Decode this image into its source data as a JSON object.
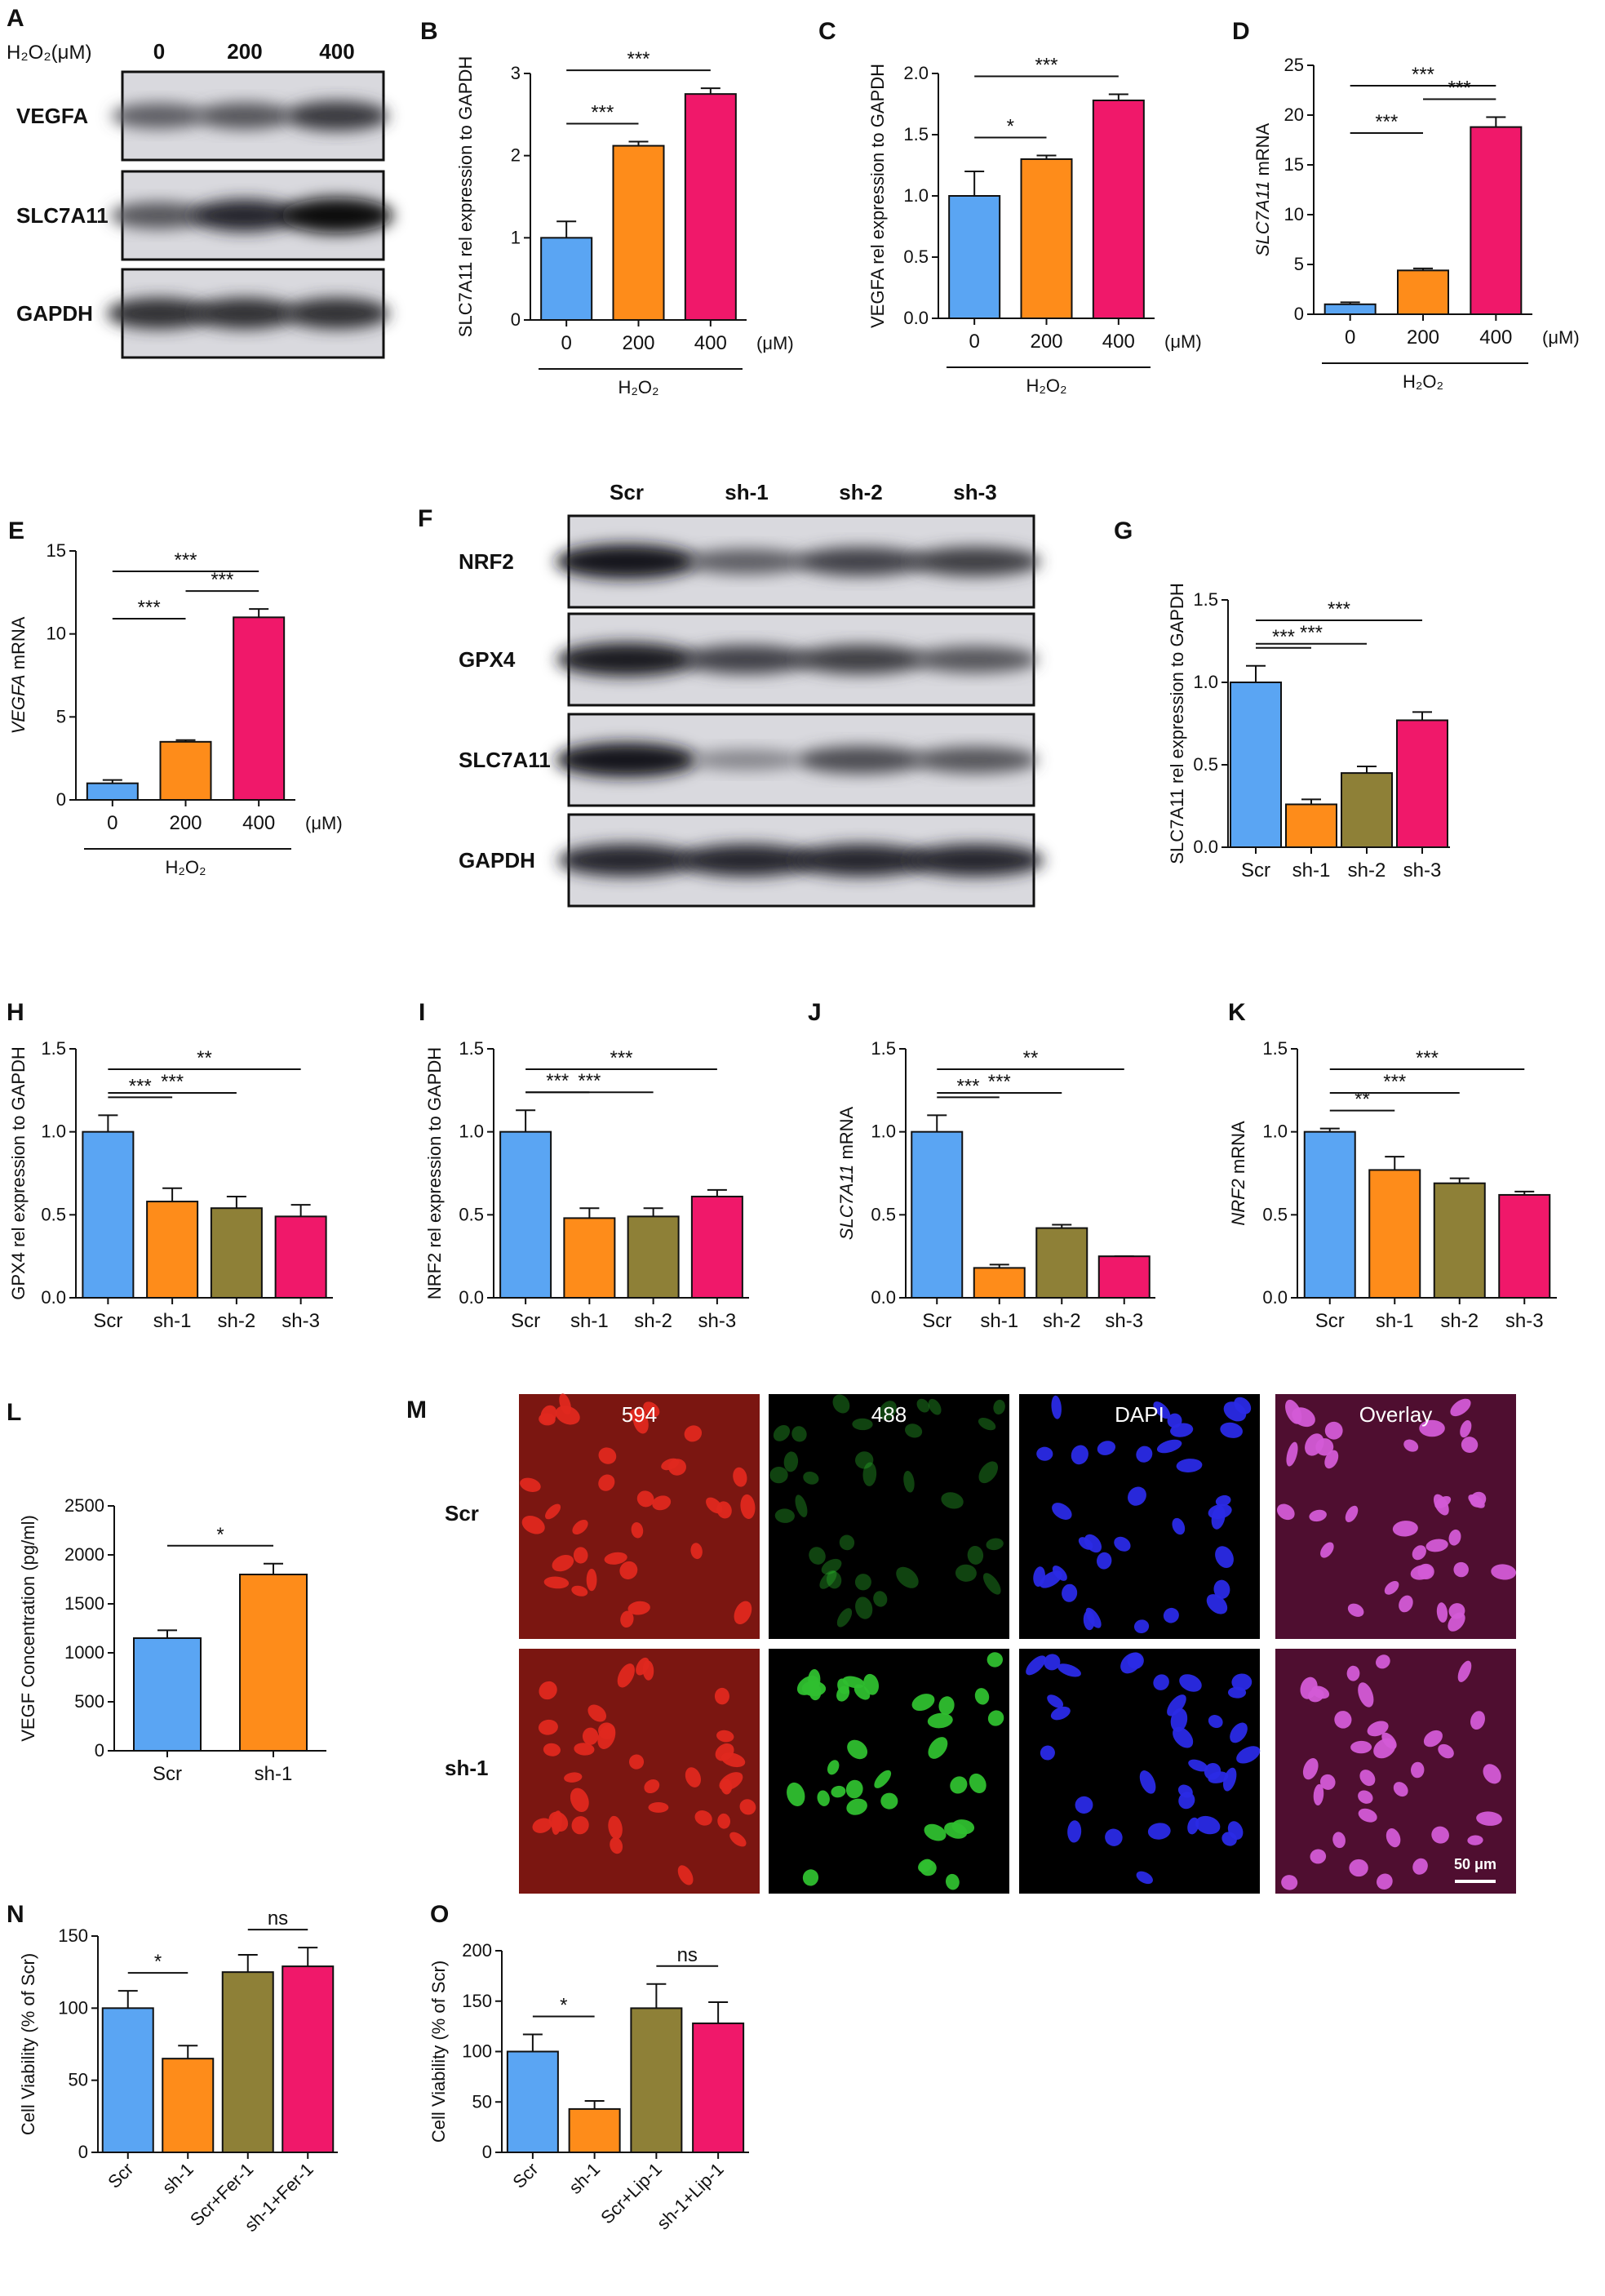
{
  "colors": {
    "blue": "#5aa5f3",
    "orange": "#fe8c1a",
    "olive": "#8e8037",
    "pink": "#f0186a",
    "axis": "#111111"
  },
  "blots": {
    "A": {
      "panel_label": "A",
      "header_label": "H₂O₂(μM)",
      "lanes": [
        "0",
        "200",
        "400"
      ],
      "rows": [
        {
          "label": "VEGFA",
          "intensity": [
            0.55,
            0.6,
            0.75
          ]
        },
        {
          "label": "SLC7A11",
          "intensity": [
            0.6,
            0.85,
            1.0
          ]
        },
        {
          "label": "GAPDH",
          "intensity": [
            0.8,
            0.8,
            0.8
          ]
        }
      ]
    },
    "F": {
      "panel_label": "F",
      "lanes": [
        "Scr",
        "sh-1",
        "sh-2",
        "sh-3"
      ],
      "rows": [
        {
          "label": "NRF2",
          "intensity": [
            0.95,
            0.55,
            0.7,
            0.72
          ]
        },
        {
          "label": "GPX4",
          "intensity": [
            0.9,
            0.7,
            0.72,
            0.6
          ]
        },
        {
          "label": "SLC7A11",
          "intensity": [
            0.95,
            0.35,
            0.65,
            0.6
          ]
        },
        {
          "label": "GAPDH",
          "intensity": [
            0.85,
            0.85,
            0.85,
            0.85
          ]
        }
      ]
    }
  },
  "microscopy": {
    "panel_label": "M",
    "columns": [
      "594",
      "488",
      "DAPI",
      "Overlay"
    ],
    "rows": [
      "Scr",
      "sh-1"
    ],
    "scale_bar_label": "50 μm",
    "channel_colors": [
      "#e0281f",
      "#2fbf2f",
      "#2a2ae6",
      "#d35bd6"
    ]
  },
  "chart_data": [
    {
      "id": "B",
      "panel_label": "B",
      "type": "bar",
      "categories": [
        "0",
        "200",
        "400"
      ],
      "values": [
        1.0,
        2.12,
        2.75
      ],
      "errors": [
        0.2,
        0.05,
        0.07
      ],
      "colors": [
        "blue",
        "orange",
        "pink"
      ],
      "ylabel": "SLC7A11 rel expression to GAPDH",
      "ylim": [
        0,
        3
      ],
      "yticks": [
        0,
        1,
        2,
        3
      ],
      "unit": "(μM)",
      "group_label": "H₂O₂",
      "sig": [
        {
          "from": 0,
          "to": 1,
          "label": "***"
        },
        {
          "from": 0,
          "to": 2,
          "label": "***"
        }
      ]
    },
    {
      "id": "C",
      "panel_label": "C",
      "type": "bar",
      "categories": [
        "0",
        "200",
        "400"
      ],
      "values": [
        1.0,
        1.3,
        1.78
      ],
      "errors": [
        0.2,
        0.03,
        0.05
      ],
      "colors": [
        "blue",
        "orange",
        "pink"
      ],
      "ylabel": "VEGFA rel expression to GAPDH",
      "ylim": [
        0,
        2
      ],
      "yticks": [
        0.0,
        0.5,
        1.0,
        1.5,
        2.0
      ],
      "unit": "(μM)",
      "group_label": "H₂O₂",
      "sig": [
        {
          "from": 0,
          "to": 1,
          "label": "*"
        },
        {
          "from": 0,
          "to": 2,
          "label": "***"
        }
      ]
    },
    {
      "id": "D",
      "panel_label": "D",
      "type": "bar",
      "categories": [
        "0",
        "200",
        "400"
      ],
      "values": [
        1.0,
        4.4,
        18.8
      ],
      "errors": [
        0.2,
        0.2,
        1.0
      ],
      "colors": [
        "blue",
        "orange",
        "pink"
      ],
      "ylabel": "SLC7A11 mRNA",
      "ylabel_italic_word": "SLC7A11",
      "ylim": [
        0,
        25
      ],
      "yticks": [
        0,
        5,
        10,
        15,
        20,
        25
      ],
      "unit": "(μM)",
      "group_label": "H₂O₂",
      "sig": [
        {
          "from": 0,
          "to": 1,
          "label": "***"
        },
        {
          "from": 1,
          "to": 2,
          "label": "***"
        },
        {
          "from": 0,
          "to": 2,
          "label": "***"
        }
      ]
    },
    {
      "id": "E",
      "panel_label": "E",
      "type": "bar",
      "categories": [
        "0",
        "200",
        "400"
      ],
      "values": [
        1.0,
        3.5,
        11.0
      ],
      "errors": [
        0.2,
        0.1,
        0.5
      ],
      "colors": [
        "blue",
        "orange",
        "pink"
      ],
      "ylabel": "VEGFA mRNA",
      "ylabel_italic_word": "VEGFA",
      "ylim": [
        0,
        15
      ],
      "yticks": [
        0,
        5,
        10,
        15
      ],
      "unit": "(μM)",
      "group_label": "H₂O₂",
      "sig": [
        {
          "from": 0,
          "to": 1,
          "label": "***"
        },
        {
          "from": 1,
          "to": 2,
          "label": "***"
        },
        {
          "from": 0,
          "to": 2,
          "label": "***"
        }
      ]
    },
    {
      "id": "G",
      "panel_label": "G",
      "type": "bar",
      "categories": [
        "Scr",
        "sh-1",
        "sh-2",
        "sh-3"
      ],
      "values": [
        1.0,
        0.26,
        0.45,
        0.77
      ],
      "errors": [
        0.1,
        0.03,
        0.04,
        0.05
      ],
      "colors": [
        "blue",
        "orange",
        "olive",
        "pink"
      ],
      "ylabel": "SLC7A11 rel expression to GAPDH",
      "ylim": [
        0,
        1.5
      ],
      "yticks": [
        0.0,
        0.5,
        1.0,
        1.5
      ],
      "sig": [
        {
          "from": 0,
          "to": 1,
          "label": "***"
        },
        {
          "from": 0,
          "to": 2,
          "label": "***"
        },
        {
          "from": 0,
          "to": 3,
          "label": "***"
        }
      ]
    },
    {
      "id": "H",
      "panel_label": "H",
      "type": "bar",
      "categories": [
        "Scr",
        "sh-1",
        "sh-2",
        "sh-3"
      ],
      "values": [
        1.0,
        0.58,
        0.54,
        0.49
      ],
      "errors": [
        0.1,
        0.08,
        0.07,
        0.07
      ],
      "colors": [
        "blue",
        "orange",
        "olive",
        "pink"
      ],
      "ylabel": "GPX4 rel expression to GAPDH",
      "ylim": [
        0,
        1.5
      ],
      "yticks": [
        0.0,
        0.5,
        1.0,
        1.5
      ],
      "sig": [
        {
          "from": 0,
          "to": 1,
          "label": "***"
        },
        {
          "from": 0,
          "to": 2,
          "label": "***"
        },
        {
          "from": 0,
          "to": 3,
          "label": "**"
        }
      ]
    },
    {
      "id": "I",
      "panel_label": "I",
      "type": "bar",
      "categories": [
        "Scr",
        "sh-1",
        "sh-2",
        "sh-3"
      ],
      "values": [
        1.0,
        0.48,
        0.49,
        0.61
      ],
      "errors": [
        0.13,
        0.06,
        0.05,
        0.04
      ],
      "colors": [
        "blue",
        "orange",
        "olive",
        "pink"
      ],
      "ylabel": "NRF2 rel expression to GAPDH",
      "ylim": [
        0,
        1.5
      ],
      "yticks": [
        0.0,
        0.5,
        1.0,
        1.5
      ],
      "sig": [
        {
          "from": 0,
          "to": 1,
          "label": "***"
        },
        {
          "from": 0,
          "to": 2,
          "label": "***"
        },
        {
          "from": 0,
          "to": 3,
          "label": "***"
        }
      ]
    },
    {
      "id": "J",
      "panel_label": "J",
      "type": "bar",
      "categories": [
        "Scr",
        "sh-1",
        "sh-2",
        "sh-3"
      ],
      "values": [
        1.0,
        0.18,
        0.42,
        0.25
      ],
      "errors": [
        0.1,
        0.02,
        0.02,
        0.0
      ],
      "colors": [
        "blue",
        "orange",
        "olive",
        "pink"
      ],
      "ylabel": "SLC7A11 mRNA",
      "ylabel_italic_word": "SLC7A11",
      "ylim": [
        0,
        1.5
      ],
      "yticks": [
        0.0,
        0.5,
        1.0,
        1.5
      ],
      "sig": [
        {
          "from": 0,
          "to": 1,
          "label": "***"
        },
        {
          "from": 0,
          "to": 2,
          "label": "***"
        },
        {
          "from": 0,
          "to": 3,
          "label": "**"
        }
      ]
    },
    {
      "id": "K",
      "panel_label": "K",
      "type": "bar",
      "categories": [
        "Scr",
        "sh-1",
        "sh-2",
        "sh-3"
      ],
      "values": [
        1.0,
        0.77,
        0.69,
        0.62
      ],
      "errors": [
        0.02,
        0.08,
        0.03,
        0.02
      ],
      "colors": [
        "blue",
        "orange",
        "olive",
        "pink"
      ],
      "ylabel": "NRF2 mRNA",
      "ylabel_italic_word": "NRF2",
      "ylim": [
        0,
        1.5
      ],
      "yticks": [
        0.0,
        0.5,
        1.0,
        1.5
      ],
      "sig": [
        {
          "from": 0,
          "to": 1,
          "label": "**"
        },
        {
          "from": 0,
          "to": 2,
          "label": "***"
        },
        {
          "from": 0,
          "to": 3,
          "label": "***"
        }
      ]
    },
    {
      "id": "L",
      "panel_label": "L",
      "type": "bar",
      "categories": [
        "Scr",
        "sh-1"
      ],
      "values": [
        1150,
        1800
      ],
      "errors": [
        80,
        110
      ],
      "colors": [
        "blue",
        "orange"
      ],
      "ylabel": "VEGF Concentration (pg/ml)",
      "ylim": [
        0,
        2500
      ],
      "yticks": [
        0,
        500,
        1000,
        1500,
        2000,
        2500
      ],
      "sig": [
        {
          "from": 0,
          "to": 1,
          "label": "*"
        }
      ]
    },
    {
      "id": "N",
      "panel_label": "N",
      "type": "bar",
      "categories": [
        "Scr",
        "sh-1",
        "Scr+Fer-1",
        "sh-1+Fer-1"
      ],
      "values": [
        100,
        65,
        125,
        129
      ],
      "errors": [
        12,
        9,
        12,
        13
      ],
      "colors": [
        "blue",
        "orange",
        "olive",
        "pink"
      ],
      "ylabel": "Cell Viability (% of Scr)",
      "ylim": [
        0,
        150
      ],
      "yticks": [
        0,
        50,
        100,
        150
      ],
      "rotate_x": true,
      "sig": [
        {
          "from": 0,
          "to": 1,
          "label": "*"
        },
        {
          "from": 2,
          "to": 3,
          "label": "ns"
        }
      ]
    },
    {
      "id": "O",
      "panel_label": "O",
      "type": "bar",
      "categories": [
        "Scr",
        "sh-1",
        "Scr+Lip-1",
        "sh-1+Lip-1"
      ],
      "values": [
        100,
        43,
        143,
        128
      ],
      "errors": [
        17,
        8,
        24,
        21
      ],
      "colors": [
        "blue",
        "orange",
        "olive",
        "pink"
      ],
      "ylabel": "Cell Viability (% of Scr)",
      "ylim": [
        0,
        200
      ],
      "yticks": [
        0,
        50,
        100,
        150,
        200
      ],
      "rotate_x": true,
      "sig": [
        {
          "from": 0,
          "to": 1,
          "label": "*"
        },
        {
          "from": 2,
          "to": 3,
          "label": "ns"
        }
      ]
    }
  ]
}
